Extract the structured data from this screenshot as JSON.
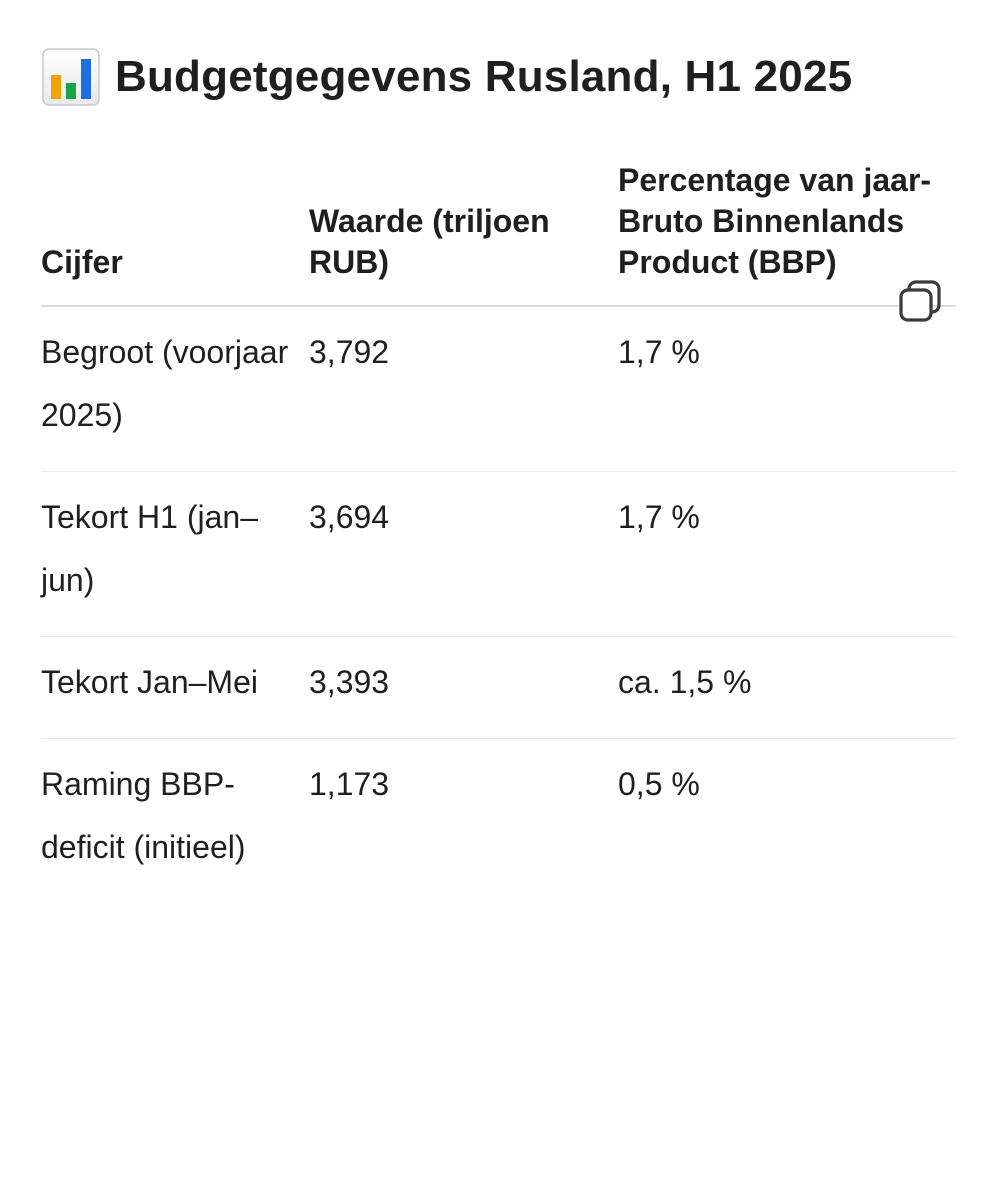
{
  "title": "Budgetgegevens Rusland, H1 2025",
  "title_icon": "bar-chart-icon",
  "table": {
    "headers": [
      "Cijfer",
      "Waarde (triljoen RUB)",
      "Percentage van jaar-Bruto Binnenlands Product (BBP)"
    ],
    "rows": [
      [
        "Begroot (voorjaar 2025)",
        "3,792",
        "1,7 %"
      ],
      [
        "Tekort H1 (jan–jun)",
        "3,694",
        "1,7 %"
      ],
      [
        "Tekort Jan–Mei",
        "3,393",
        "ca. 1,5 %"
      ],
      [
        "Raming BBP-deficit (initieel)",
        "1,173",
        "0,5 %"
      ]
    ]
  },
  "copy_icon": "copy-icon",
  "colors": {
    "text": "#1f1f1f",
    "divider": "#dddddd"
  }
}
